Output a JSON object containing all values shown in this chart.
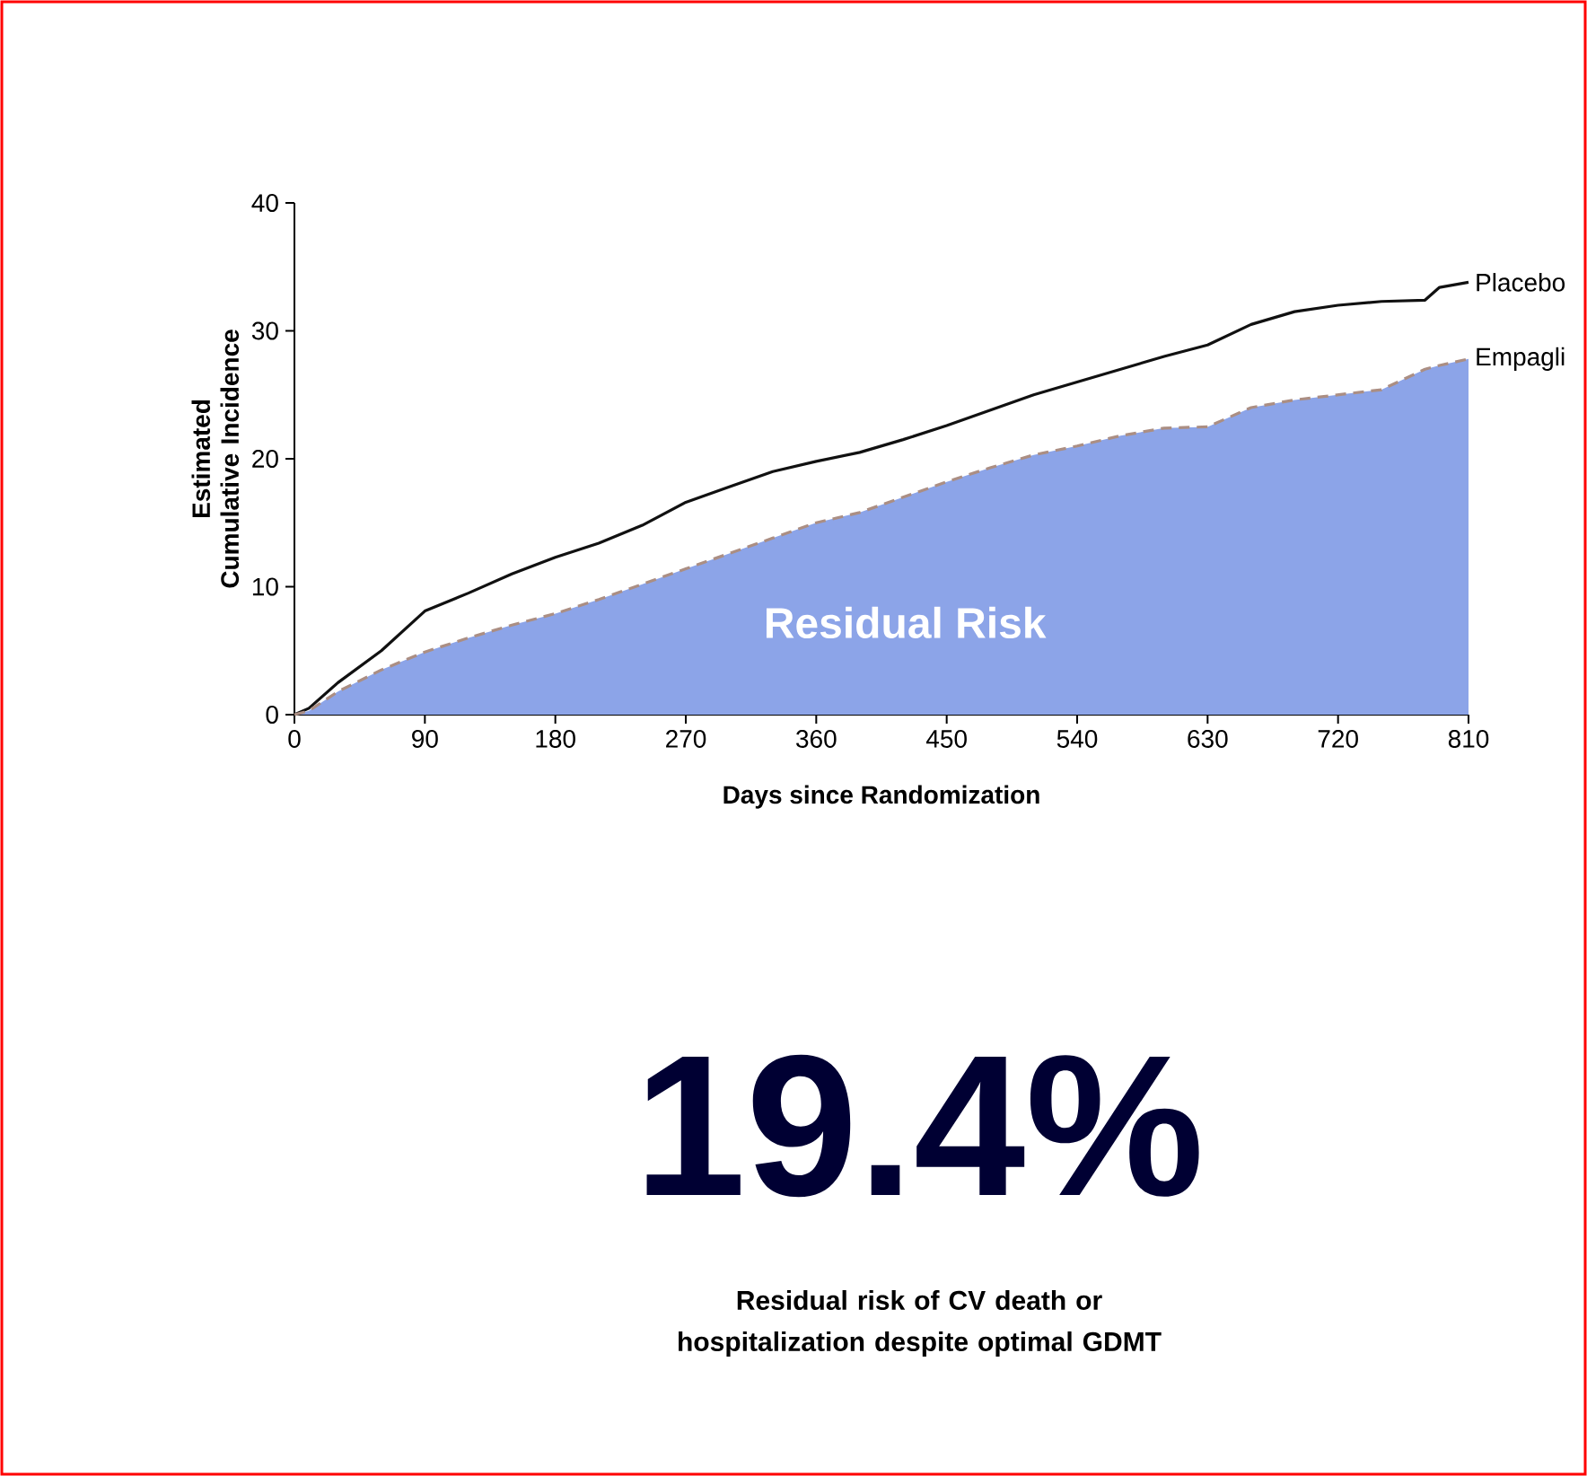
{
  "chart_data": {
    "type": "line",
    "xlabel": "Days since Randomization",
    "ylabel": "Estimated Cumulative Incidence",
    "x": [
      0,
      10,
      30,
      60,
      90,
      120,
      150,
      180,
      210,
      240,
      270,
      300,
      330,
      360,
      390,
      420,
      450,
      480,
      510,
      540,
      570,
      600,
      630,
      660,
      690,
      720,
      750,
      780,
      790,
      810
    ],
    "series": [
      {
        "name": "Placebo",
        "type": "line",
        "color": "#111111",
        "line_style": "solid",
        "values": [
          0,
          0.5,
          2.5,
          5,
          8.1,
          9.5,
          11,
          12.3,
          13.4,
          14.8,
          16.6,
          17.8,
          19,
          19.8,
          20.5,
          21.5,
          22.6,
          23.8,
          25,
          26,
          27,
          28,
          28.9,
          30.5,
          31.5,
          32,
          32.3,
          32.4,
          33.4,
          33.8
        ]
      },
      {
        "name": "Empagli",
        "type": "area",
        "color": "#8ca4e8",
        "line_style": "dashed",
        "values": [
          0,
          0.3,
          1.8,
          3.5,
          4.9,
          6,
          7,
          7.9,
          9,
          10.2,
          11.4,
          12.6,
          13.8,
          15,
          15.8,
          17,
          18.2,
          19.3,
          20.3,
          21,
          21.8,
          22.4,
          22.5,
          24,
          24.6,
          25,
          25.4,
          27,
          27.3,
          27.8
        ]
      }
    ],
    "xlim": [
      0,
      810
    ],
    "ylim": [
      0,
      40
    ],
    "xticks": [
      0,
      90,
      180,
      270,
      360,
      450,
      540,
      630,
      720,
      810
    ],
    "yticks": [
      0,
      10,
      20,
      30,
      40
    ],
    "grid": false,
    "legend": false,
    "annotations": [
      "Residual Risk",
      "19.4%",
      "Residual risk of CV death or hospitalization despite optimal GDMT"
    ]
  }
}
